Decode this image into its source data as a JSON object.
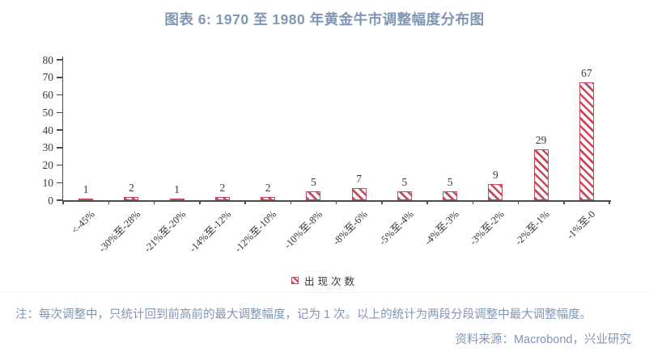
{
  "title": "图表 6:  1970 至 1980 年黄金牛市调整幅度分布图",
  "chart_data": {
    "type": "bar",
    "title": "图表 6: 1970 至 1980 年黄金牛市调整幅度分布图",
    "categories": [
      "<-45%",
      "-30%至-28%",
      "-21%至-20%",
      "-14%至-12%",
      "-12%至-10%",
      "-10%至-8%",
      "-8%至-6%",
      "-5%至-4%",
      "-4%至-3%",
      "-3%至-2%",
      "-2%至-1%",
      "-1%至-0"
    ],
    "values": [
      1,
      2,
      1,
      2,
      2,
      5,
      7,
      5,
      5,
      9,
      29,
      67
    ],
    "series_name": "出现次数",
    "xlabel": "",
    "ylabel": "",
    "ylim": [
      0,
      80
    ],
    "yticks": [
      0,
      10,
      20,
      30,
      40,
      50,
      60,
      70,
      80
    ],
    "grid": false,
    "legend_position": "bottom-center",
    "bar_fill": "diagonal-hatch",
    "bar_color": "#C9485B"
  },
  "legend": {
    "label": "出现次数",
    "marker": "hatched-square-icon"
  },
  "footer": {
    "note": "注：每次调整中，只统计回到前高前的最大调整幅度，记为 1 次。以上的统计为两段分段调整中最大调整幅度。",
    "source": "资料来源：Macrobond，兴业研究"
  },
  "colors": {
    "title_text": "#8096B4",
    "note_text": "#8096B4",
    "bar": "#C9485B",
    "axis": "#4D4D4D",
    "label_text": "#3A3A3A"
  }
}
